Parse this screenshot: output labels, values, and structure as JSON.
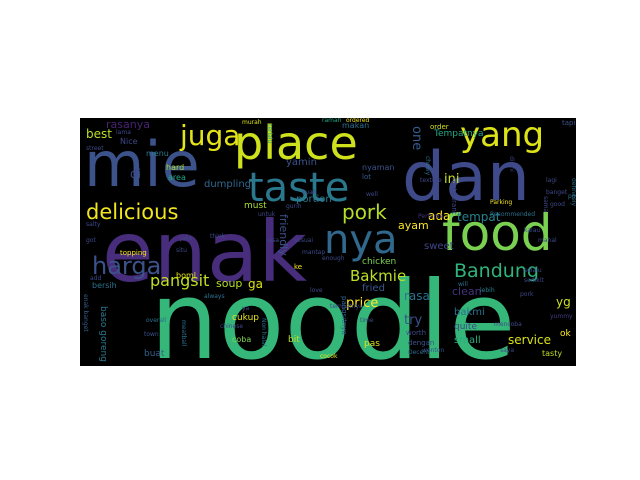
{
  "wordcloud": {
    "background": "#000000",
    "words": [
      {
        "text": "noodle",
        "color": "#35b779"
      },
      {
        "text": "enak",
        "color": "#472d7b"
      },
      {
        "text": "mie",
        "color": "#3b528b"
      },
      {
        "text": "dan",
        "color": "#3e4a89"
      },
      {
        "text": "place",
        "color": "#cde11d"
      },
      {
        "text": "taste",
        "color": "#2a788e"
      },
      {
        "text": "yang",
        "color": "#dde318"
      },
      {
        "text": "food",
        "color": "#7ad151"
      },
      {
        "text": "nya",
        "color": "#31688e"
      },
      {
        "text": "juga",
        "color": "#e5e419"
      },
      {
        "text": "delicious",
        "color": "#f1e51d"
      },
      {
        "text": "harga",
        "color": "#3b528b"
      },
      {
        "text": "pork",
        "color": "#b5de2b"
      },
      {
        "text": "Bandung",
        "color": "#2fb47c"
      },
      {
        "text": "Bakmie",
        "color": "#bddf26"
      },
      {
        "text": "pangsit",
        "color": "#c2df23"
      },
      {
        "text": "price",
        "color": "#fde725"
      },
      {
        "text": "tempat",
        "color": "#26828e"
      },
      {
        "text": "service",
        "color": "#d8e219"
      },
      {
        "text": "best",
        "color": "#bddf26"
      },
      {
        "text": "di",
        "color": "#3e4989"
      },
      {
        "text": "ini",
        "color": "#c8e020"
      },
      {
        "text": "ada",
        "color": "#fde725"
      },
      {
        "text": "yg",
        "color": "#cde11d"
      },
      {
        "text": "one",
        "color": "#365c8d"
      },
      {
        "text": "soup",
        "color": "#b8de29"
      },
      {
        "text": "ga",
        "color": "#dde318"
      },
      {
        "text": "try",
        "color": "#3b528b"
      },
      {
        "text": "clean",
        "color": "#46337e"
      },
      {
        "text": "rasa",
        "color": "#2c728e"
      },
      {
        "text": "ayam",
        "color": "#f8e621"
      },
      {
        "text": "sweet",
        "color": "#3f4788"
      },
      {
        "text": "fried",
        "color": "#38598c"
      },
      {
        "text": "chicken",
        "color": "#7ad151"
      },
      {
        "text": "small",
        "color": "#28ae80"
      },
      {
        "text": "bakmi",
        "color": "#2d708e"
      },
      {
        "text": "rasanya",
        "color": "#482374"
      },
      {
        "text": "yamin",
        "color": "#3b528b"
      },
      {
        "text": "friendly",
        "color": "#3b528b"
      },
      {
        "text": "portion",
        "color": "#2a788e"
      },
      {
        "text": "dumpling",
        "color": "#31688e"
      },
      {
        "text": "must",
        "color": "#aadc32"
      },
      {
        "text": "Tempatnya",
        "color": "#22a884"
      },
      {
        "text": "quite",
        "color": "#3e4a89"
      },
      {
        "text": "baso goreng",
        "color": "#2a788e"
      },
      {
        "text": "cukup",
        "color": "#e5e419"
      },
      {
        "text": "buat",
        "color": "#355f8d"
      },
      {
        "text": "coba",
        "color": "#81d34d"
      },
      {
        "text": "bersih",
        "color": "#2c728e"
      },
      {
        "text": "Nice",
        "color": "#3e4989"
      },
      {
        "text": "menu",
        "color": "#2a788e"
      },
      {
        "text": "hard",
        "color": "#a5db36"
      },
      {
        "text": "area",
        "color": "#22a884"
      },
      {
        "text": "makan",
        "color": "#2d708e"
      },
      {
        "text": "nyaman",
        "color": "#3b528b"
      },
      {
        "text": "order",
        "color": "#d2e21b"
      },
      {
        "text": "tapi",
        "color": "#3b528b"
      },
      {
        "text": "ordered",
        "color": "#f1e51d"
      },
      {
        "text": "ramah",
        "color": "#22a884"
      },
      {
        "text": "lot",
        "color": "#365c8d"
      },
      {
        "text": "murah",
        "color": "#dde318"
      },
      {
        "text": "terlalu",
        "color": "#1f9e89"
      },
      {
        "text": "restaurant",
        "color": "#414487"
      },
      {
        "text": "definitely",
        "color": "#2c728e"
      },
      {
        "text": "pas",
        "color": "#dde318"
      },
      {
        "text": "bit",
        "color": "#bddf26"
      },
      {
        "text": "ok",
        "color": "#fde725"
      },
      {
        "text": "tasty",
        "color": "#c2df23"
      },
      {
        "text": "topping",
        "color": "#fde725"
      },
      {
        "text": "boml",
        "color": "#e5e419"
      },
      {
        "text": "pangsitnya",
        "color": "#31688e"
      },
      {
        "text": "worth",
        "color": "#3e4a89"
      },
      {
        "text": "dengan",
        "color": "#3b528b"
      },
      {
        "text": "Recommended",
        "color": "#2c728e"
      },
      {
        "text": "Pertama",
        "color": "#46337e"
      },
      {
        "text": "Parking",
        "color": "#f8e621"
      },
      {
        "text": "lebih",
        "color": "#26828e"
      },
      {
        "text": "disini",
        "color": "#3e4989"
      },
      {
        "text": "chewy",
        "color": "#2c728e"
      },
      {
        "text": "will",
        "color": "#2c728e"
      },
      {
        "text": "yummy",
        "color": "#433e85"
      },
      {
        "text": "porsi",
        "color": "#2c728e"
      },
      {
        "text": "sama",
        "color": "#3e4989"
      },
      {
        "text": "enak banget",
        "color": "#355f8d"
      },
      {
        "text": "town",
        "color": "#3b528b"
      },
      {
        "text": "overall",
        "color": "#2c728e"
      },
      {
        "text": "chinese",
        "color": "#3e4989"
      },
      {
        "text": "Non halal",
        "color": "#2c728e"
      },
      {
        "text": "cocok",
        "color": "#dde318"
      },
      {
        "text": "time",
        "color": "#3e4989"
      },
      {
        "text": "wonton",
        "color": "#3b528b"
      },
      {
        "text": "Decent",
        "color": "#31688e"
      },
      {
        "text": "texture",
        "color": "#3e4989"
      },
      {
        "text": "meatball",
        "color": "#2c728e"
      },
      {
        "text": "always",
        "color": "#2c728e"
      },
      {
        "text": "ke",
        "color": "#fde725"
      },
      {
        "text": "enough",
        "color": "#3e4989"
      },
      {
        "text": "love",
        "color": "#3e4989"
      },
      {
        "text": "salty",
        "color": "#3e4989"
      },
      {
        "text": "think",
        "color": "#3e4989"
      },
      {
        "text": "jake",
        "color": "#3e4989"
      },
      {
        "text": "situ",
        "color": "#3e4989"
      },
      {
        "text": "untuk",
        "color": "#3e4989"
      },
      {
        "text": "rasa",
        "color": "#3e4989"
      },
      {
        "text": "lama",
        "color": "#3e4989"
      },
      {
        "text": "street",
        "color": "#3e4989"
      },
      {
        "text": "mencoba",
        "color": "#3e4989"
      },
      {
        "text": "selalu",
        "color": "#3e4989"
      },
      {
        "text": "sedikit",
        "color": "#3e4989"
      },
      {
        "text": "kalau",
        "color": "#3e4989"
      },
      {
        "text": "got",
        "color": "#3e4989"
      },
      {
        "text": "mahal",
        "color": "#3e4989"
      },
      {
        "text": "sesuai",
        "color": "#3e4989"
      },
      {
        "text": "add",
        "color": "#3e4989"
      },
      {
        "text": "tempatnya",
        "color": "#3e4989"
      },
      {
        "text": "ya",
        "color": "#3e4989"
      },
      {
        "text": "saya",
        "color": "#3e4989"
      },
      {
        "text": "lagi",
        "color": "#3e4989"
      },
      {
        "text": "banget",
        "color": "#3e4989"
      },
      {
        "text": "pork",
        "color": "#3e4989"
      },
      {
        "text": "kuah",
        "color": "#3e4989"
      },
      {
        "text": "gurih",
        "color": "#3e4989"
      },
      {
        "text": "mantap",
        "color": "#3e4989"
      },
      {
        "text": "good",
        "color": "#3e4989"
      },
      {
        "text": "well",
        "color": "#3e4989"
      }
    ]
  }
}
